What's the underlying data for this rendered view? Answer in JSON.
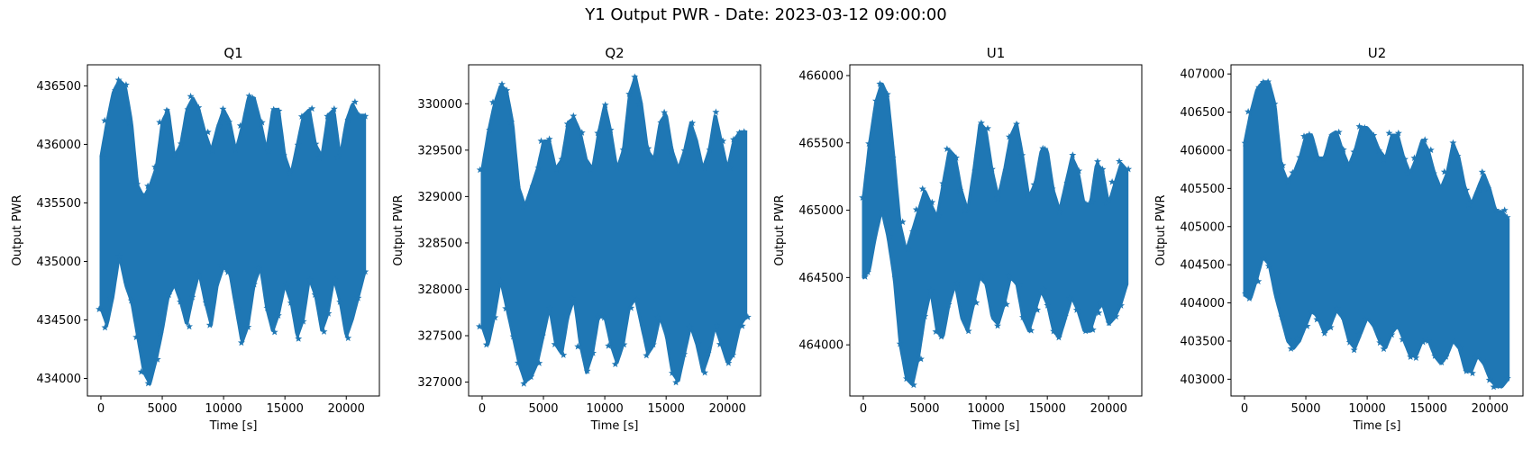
{
  "suptitle": "Y1 Output PWR - Date: 2023-03-12 09:00:00",
  "marker_color": "#1f77b4",
  "chart_data": [
    {
      "type": "scatter",
      "marker": "star",
      "title": "Q1",
      "xlabel": "Time [s]",
      "ylabel": "Output PWR",
      "xlim": [
        -1100,
        22700
      ],
      "ylim": [
        433850,
        436680
      ],
      "xticks": [
        0,
        5000,
        10000,
        15000,
        20000
      ],
      "yticks": [
        434000,
        434500,
        435000,
        435500,
        436000,
        436500
      ],
      "upper_envelope": {
        "x": [
          0,
          500,
          1000,
          1500,
          2000,
          2500,
          3000,
          3500,
          4000,
          4500,
          5000,
          5500,
          6000,
          6500,
          7000,
          7500,
          8000,
          8500,
          9000,
          9500,
          10000,
          10500,
          11000,
          11500,
          12000,
          12500,
          13000,
          13500,
          14000,
          14500,
          15000,
          15500,
          16000,
          16500,
          17000,
          17500,
          18000,
          18500,
          19000,
          19500,
          20000,
          20500,
          21000,
          21500
        ],
        "y": [
          435900,
          436200,
          436450,
          436550,
          436500,
          436200,
          435650,
          435550,
          435650,
          435800,
          436200,
          436300,
          435900,
          436000,
          436300,
          436400,
          436300,
          436100,
          435950,
          436150,
          436300,
          436200,
          435950,
          436150,
          436400,
          436400,
          436200,
          435950,
          436300,
          436300,
          435900,
          435750,
          436000,
          436250,
          436300,
          436000,
          435900,
          436250,
          436300,
          435900,
          436200,
          436350,
          436250,
          436250
        ]
      },
      "lower_envelope": {
        "x": [
          0,
          500,
          1000,
          1500,
          2000,
          2500,
          3000,
          3500,
          4000,
          4500,
          5000,
          5500,
          6000,
          6500,
          7000,
          7500,
          8000,
          8500,
          9000,
          9500,
          10000,
          10500,
          11000,
          11500,
          12000,
          12500,
          13000,
          13500,
          14000,
          14500,
          15000,
          15500,
          16000,
          16500,
          17000,
          17500,
          18000,
          18500,
          19000,
          19500,
          20000,
          20500,
          21000,
          21500
        ],
        "y": [
          434600,
          434450,
          434700,
          435050,
          434800,
          434650,
          434350,
          434050,
          433950,
          434150,
          434400,
          434700,
          434800,
          434650,
          434450,
          434700,
          434900,
          434650,
          434450,
          434800,
          434950,
          434900,
          434600,
          434300,
          434450,
          434800,
          434950,
          434600,
          434400,
          434550,
          434800,
          434650,
          434350,
          434500,
          434850,
          434700,
          434400,
          434550,
          434850,
          434650,
          434350,
          434500,
          434700,
          434900
        ]
      }
    },
    {
      "type": "scatter",
      "marker": "star",
      "title": "Q2",
      "xlabel": "Time [s]",
      "ylabel": "Output PWR",
      "xlim": [
        -1100,
        22700
      ],
      "ylim": [
        326850,
        330420
      ],
      "xticks": [
        0,
        5000,
        10000,
        15000,
        20000
      ],
      "yticks": [
        327000,
        327500,
        328000,
        328500,
        329000,
        329500,
        330000
      ],
      "upper_envelope": {
        "x": [
          0,
          500,
          1000,
          1500,
          2000,
          2500,
          3000,
          3500,
          4000,
          4500,
          5000,
          5500,
          6000,
          6500,
          7000,
          7500,
          8000,
          8500,
          9000,
          9500,
          10000,
          10500,
          11000,
          11500,
          12000,
          12500,
          13000,
          13500,
          14000,
          14500,
          15000,
          15500,
          16000,
          16500,
          17000,
          17500,
          18000,
          18500,
          19000,
          19500,
          20000,
          20500,
          21000,
          21500
        ],
        "y": [
          329300,
          329700,
          330000,
          330200,
          330150,
          329800,
          329100,
          328900,
          329100,
          329300,
          329600,
          329600,
          329300,
          329400,
          329800,
          329850,
          329700,
          329400,
          329300,
          329700,
          330000,
          329700,
          329300,
          329500,
          330100,
          330300,
          330000,
          329500,
          329400,
          329800,
          329900,
          329500,
          329300,
          329500,
          329800,
          329600,
          329300,
          329500,
          329900,
          329600,
          329300,
          329600,
          329700,
          329700
        ]
      },
      "lower_envelope": {
        "x": [
          0,
          500,
          1000,
          1500,
          2000,
          2500,
          3000,
          3500,
          4000,
          4500,
          5000,
          5500,
          6000,
          6500,
          7000,
          7500,
          8000,
          8500,
          9000,
          9500,
          10000,
          10500,
          11000,
          11500,
          12000,
          12500,
          13000,
          13500,
          14000,
          14500,
          15000,
          15500,
          16000,
          16500,
          17000,
          17500,
          18000,
          18500,
          19000,
          19500,
          20000,
          20500,
          21000,
          21500
        ],
        "y": [
          327600,
          327400,
          327700,
          328100,
          327800,
          327500,
          327200,
          327000,
          327050,
          327200,
          327500,
          327800,
          327400,
          327300,
          327700,
          327900,
          327400,
          327100,
          327300,
          327700,
          327700,
          327400,
          327200,
          327400,
          327800,
          327900,
          327600,
          327300,
          327400,
          327700,
          327500,
          327100,
          327000,
          327300,
          327600,
          327400,
          327100,
          327300,
          327600,
          327400,
          327200,
          327300,
          327600,
          327700
        ]
      }
    },
    {
      "type": "scatter",
      "marker": "star",
      "title": "U1",
      "xlabel": "Time [s]",
      "ylabel": "Output PWR",
      "xlim": [
        -1100,
        22700
      ],
      "ylim": [
        463620,
        466080
      ],
      "xticks": [
        0,
        5000,
        10000,
        15000,
        20000
      ],
      "yticks": [
        464000,
        464500,
        465000,
        465500,
        466000
      ],
      "upper_envelope": {
        "x": [
          0,
          500,
          1000,
          1500,
          2000,
          2500,
          3000,
          3500,
          4000,
          4500,
          5000,
          5500,
          6000,
          6500,
          7000,
          7500,
          8000,
          8500,
          9000,
          9500,
          10000,
          10500,
          11000,
          11500,
          12000,
          12500,
          13000,
          13500,
          14000,
          14500,
          15000,
          15500,
          16000,
          16500,
          17000,
          17500,
          18000,
          18500,
          19000,
          19500,
          20000,
          20500,
          21000,
          21500
        ],
        "y": [
          465100,
          465500,
          465800,
          465950,
          465850,
          465400,
          464900,
          464700,
          464850,
          465000,
          465150,
          465050,
          464950,
          465200,
          465450,
          465400,
          465150,
          465000,
          465300,
          465650,
          465600,
          465300,
          465100,
          465300,
          465550,
          465650,
          465400,
          465100,
          465200,
          465450,
          465450,
          465150,
          465000,
          465200,
          465400,
          465300,
          465050,
          465050,
          465350,
          465300,
          465050,
          465200,
          465350,
          465300
        ]
      },
      "lower_envelope": {
        "x": [
          0,
          500,
          1000,
          1500,
          2000,
          2500,
          3000,
          3500,
          4000,
          4500,
          5000,
          5500,
          6000,
          6500,
          7000,
          7500,
          8000,
          8500,
          9000,
          9500,
          10000,
          10500,
          11000,
          11500,
          12000,
          12500,
          13000,
          13500,
          14000,
          14500,
          15000,
          15500,
          16000,
          16500,
          17000,
          17500,
          18000,
          18500,
          19000,
          19500,
          20000,
          20500,
          21000,
          21500
        ],
        "y": [
          464500,
          464550,
          464800,
          465000,
          464800,
          464500,
          464000,
          463750,
          463700,
          463900,
          464200,
          464400,
          464100,
          464050,
          464300,
          464450,
          464200,
          464100,
          464300,
          464500,
          464450,
          464200,
          464150,
          464300,
          464500,
          464450,
          464200,
          464100,
          464250,
          464400,
          464300,
          464100,
          464050,
          464200,
          464350,
          464250,
          464100,
          464100,
          464250,
          464300,
          464150,
          464200,
          464300,
          464450
        ]
      }
    },
    {
      "type": "scatter",
      "marker": "star",
      "title": "U2",
      "xlabel": "Time [s]",
      "ylabel": "Output PWR",
      "xlim": [
        -1100,
        22700
      ],
      "ylim": [
        402780,
        407120
      ],
      "xticks": [
        0,
        5000,
        10000,
        15000,
        20000
      ],
      "yticks": [
        403000,
        403500,
        404000,
        404500,
        405000,
        405500,
        406000,
        406500,
        407000
      ],
      "upper_envelope": {
        "x": [
          0,
          500,
          1000,
          1500,
          2000,
          2500,
          3000,
          3500,
          4000,
          4500,
          5000,
          5500,
          6000,
          6500,
          7000,
          7500,
          8000,
          8500,
          9000,
          9500,
          10000,
          10500,
          11000,
          11500,
          12000,
          12500,
          13000,
          13500,
          14000,
          14500,
          15000,
          15500,
          16000,
          16500,
          17000,
          17500,
          18000,
          18500,
          19000,
          19500,
          20000,
          20500,
          21000,
          21500
        ],
        "y": [
          406100,
          406500,
          406800,
          406900,
          406900,
          406600,
          405800,
          405600,
          405700,
          405900,
          406200,
          406200,
          405900,
          405900,
          406200,
          406250,
          406000,
          405800,
          406000,
          406300,
          406300,
          406200,
          406000,
          405900,
          406200,
          406200,
          405900,
          405700,
          405900,
          406150,
          406000,
          405700,
          405500,
          405700,
          406100,
          405900,
          405500,
          405300,
          405500,
          405700,
          405500,
          405200,
          405200,
          405100
        ]
      },
      "lower_envelope": {
        "x": [
          0,
          500,
          1000,
          1500,
          2000,
          2500,
          3000,
          3500,
          4000,
          4500,
          5000,
          5500,
          6000,
          6500,
          7000,
          7500,
          8000,
          8500,
          9000,
          9500,
          10000,
          10500,
          11000,
          11500,
          12000,
          12500,
          13000,
          13500,
          14000,
          14500,
          15000,
          15500,
          16000,
          16500,
          17000,
          17500,
          18000,
          18500,
          19000,
          19500,
          20000,
          20500,
          21000,
          21500
        ],
        "y": [
          404100,
          404050,
          404300,
          404600,
          404500,
          404100,
          403800,
          403500,
          403400,
          403500,
          403700,
          403900,
          403800,
          403600,
          403700,
          403900,
          403800,
          403500,
          403400,
          403600,
          403800,
          403700,
          403500,
          403400,
          403600,
          403700,
          403500,
          403300,
          403300,
          403500,
          403500,
          403300,
          403200,
          403300,
          403500,
          403400,
          403100,
          403100,
          403300,
          403200,
          403000,
          402900,
          402900,
          403000
        ]
      }
    }
  ]
}
